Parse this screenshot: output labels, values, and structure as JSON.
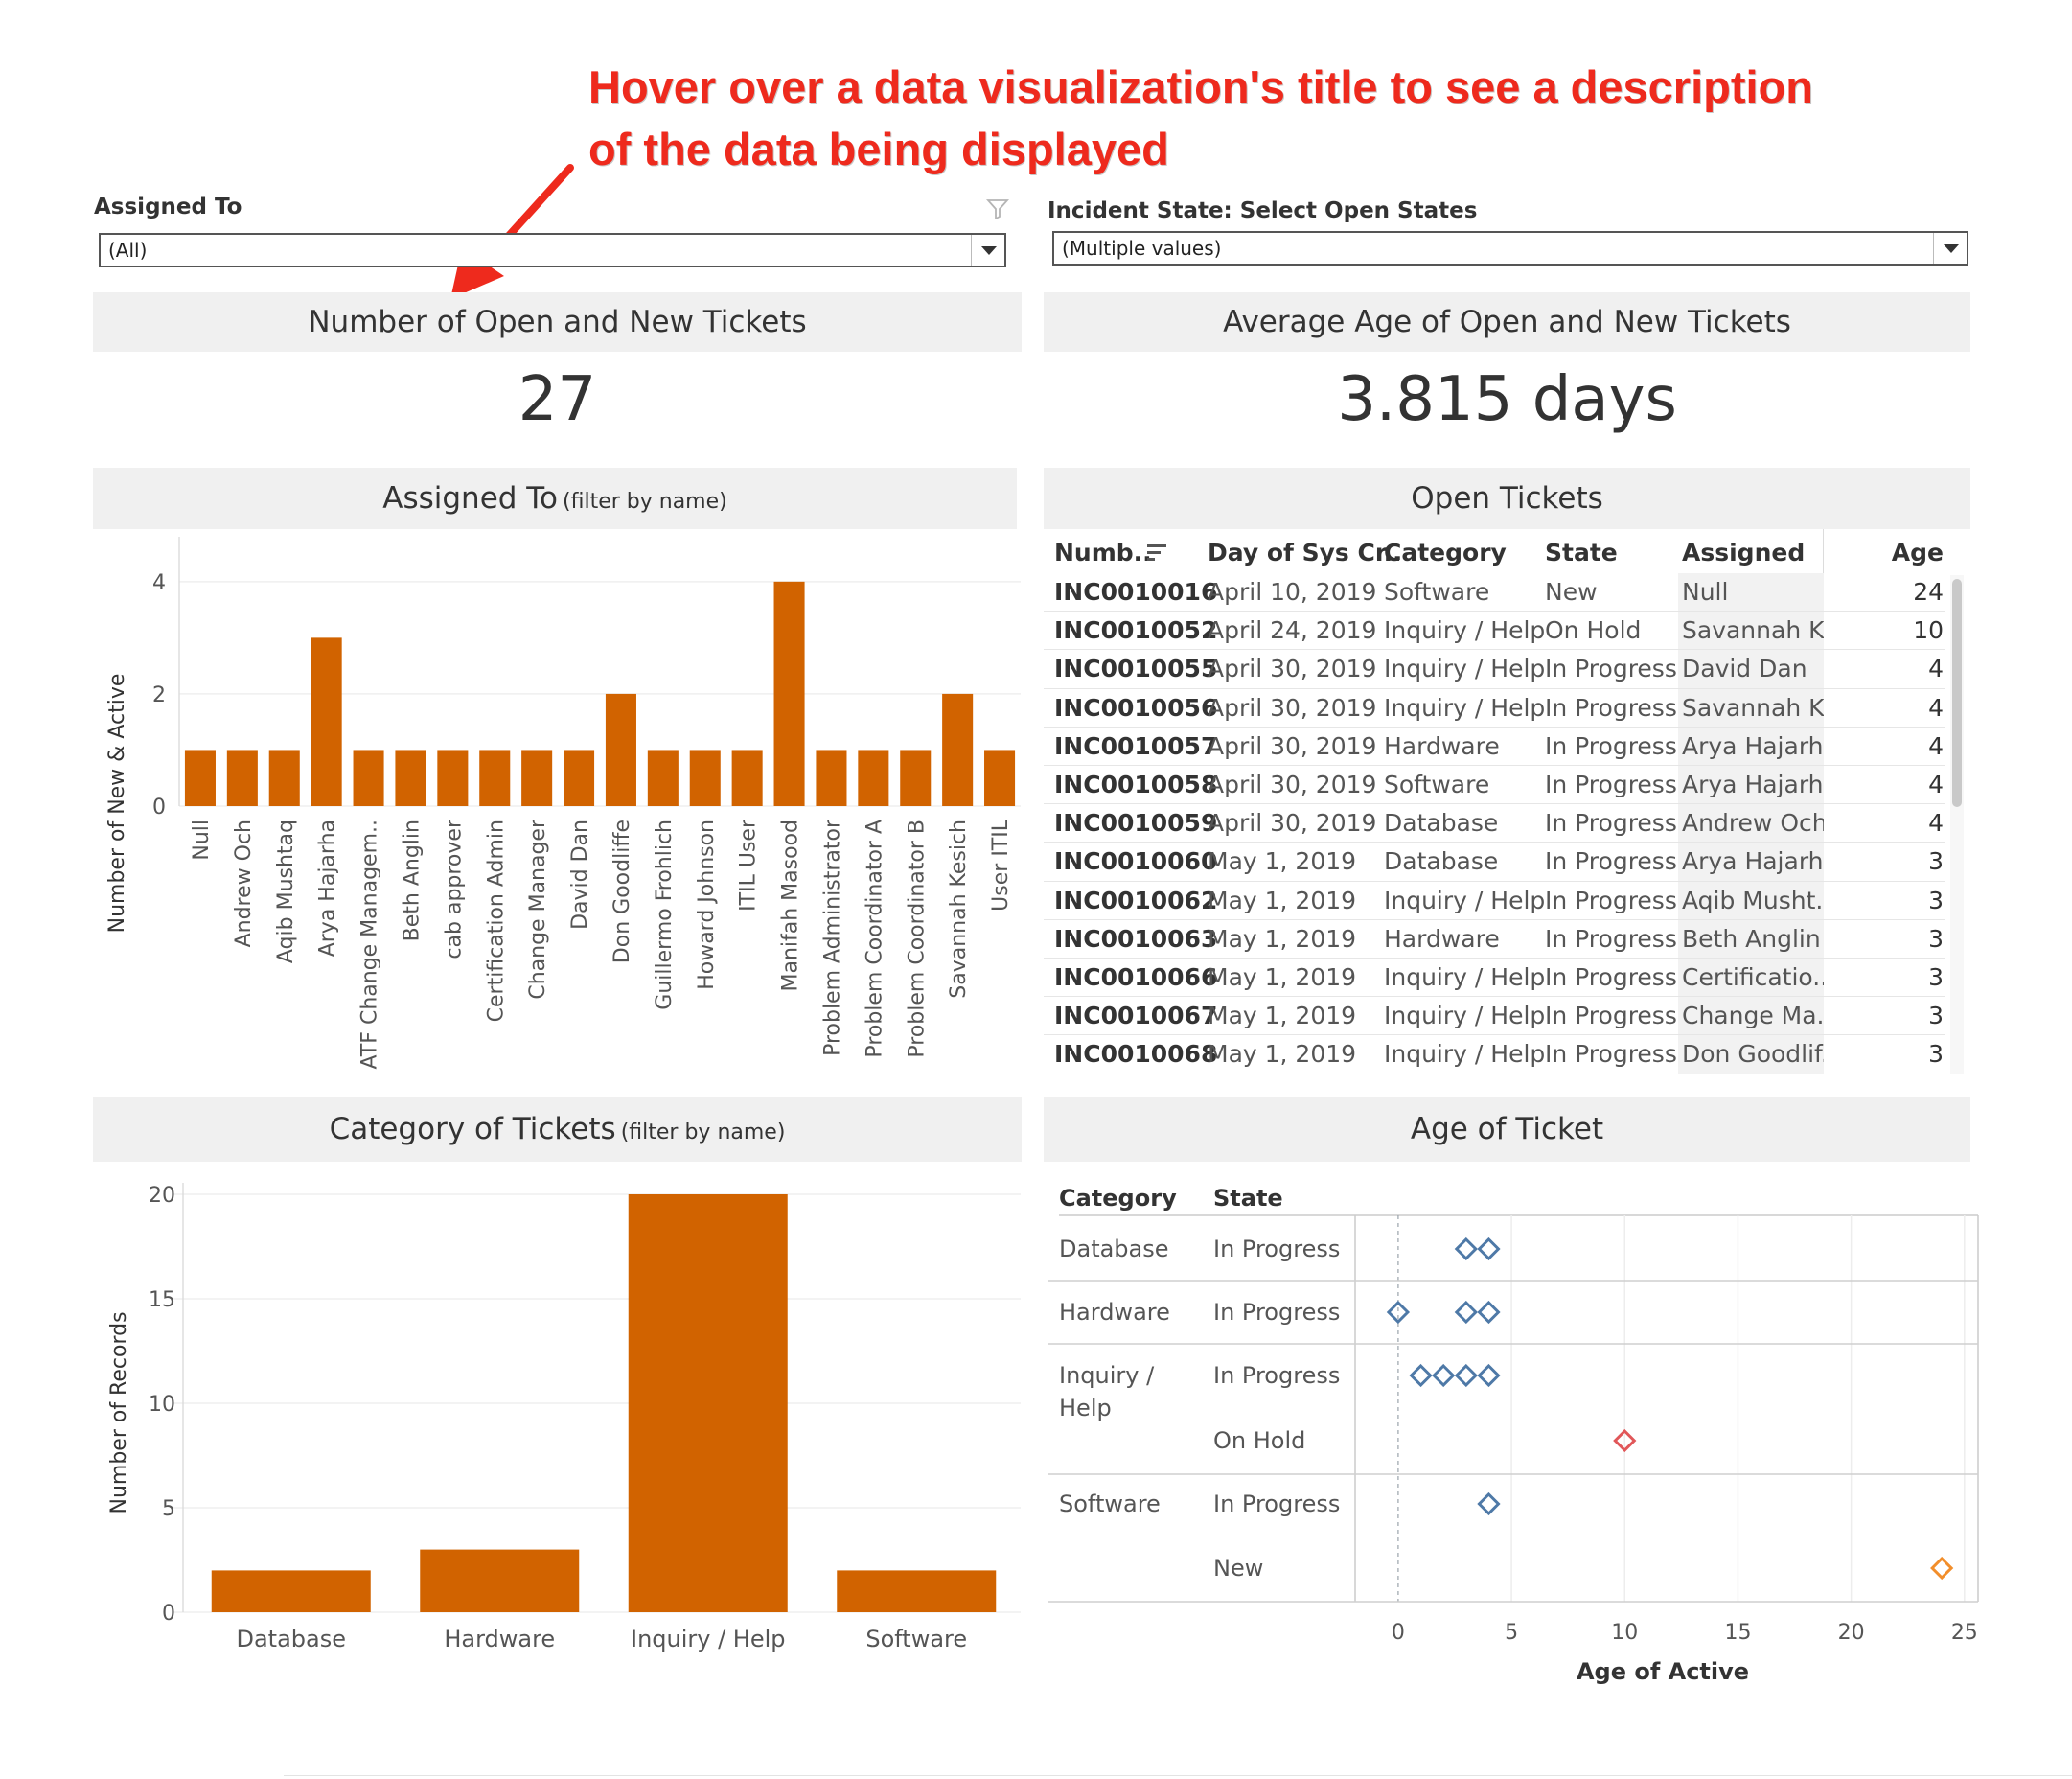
{
  "annotation": {
    "line1": "Hover over a data visualization's title to see a description",
    "line2": "of the data being displayed"
  },
  "filters": {
    "assigned_to": {
      "label": "Assigned To",
      "value": "(All)",
      "icon": "funnel-icon"
    },
    "incident_state": {
      "label": "Incident State: Select Open States",
      "value": "(Multiple values)"
    }
  },
  "kpis": {
    "open_tickets": {
      "title": "Number of Open and New Tickets",
      "value": "27"
    },
    "avg_age": {
      "title": "Average Age of Open and New Tickets",
      "value": "3.815 days"
    }
  },
  "assigned_chart": {
    "title": "Assigned To",
    "subtitle": "(filter by name)",
    "ylabel": "Number of New & Active",
    "color": "#d16300"
  },
  "category_chart": {
    "title": "Category of Tickets",
    "subtitle": "(filter by name)",
    "ylabel": "Number of Records",
    "color": "#d16300"
  },
  "open_tickets_table": {
    "title": "Open Tickets",
    "columns": [
      "Numb..",
      "Day of Sys Cr..",
      "Category",
      "State",
      "Assigned",
      "Age"
    ],
    "sort_icon": "sort-icon",
    "rows": [
      [
        "INC0010016",
        "April 10, 2019",
        "Software",
        "New",
        "Null",
        "24"
      ],
      [
        "INC0010052",
        "April 24, 2019",
        "Inquiry / Help",
        "On Hold",
        "Savannah K..",
        "10"
      ],
      [
        "INC0010055",
        "April 30, 2019",
        "Inquiry / Help",
        "In Progress",
        "David Dan",
        "4"
      ],
      [
        "INC0010056",
        "April 30, 2019",
        "Inquiry / Help",
        "In Progress",
        "Savannah K..",
        "4"
      ],
      [
        "INC0010057",
        "April 30, 2019",
        "Hardware",
        "In Progress",
        "Arya Hajarha",
        "4"
      ],
      [
        "INC0010058",
        "April 30, 2019",
        "Software",
        "In Progress",
        "Arya Hajarha",
        "4"
      ],
      [
        "INC0010059",
        "April 30, 2019",
        "Database",
        "In Progress",
        "Andrew Och",
        "4"
      ],
      [
        "INC0010060",
        "May 1, 2019",
        "Database",
        "In Progress",
        "Arya Hajarha",
        "3"
      ],
      [
        "INC0010062",
        "May 1, 2019",
        "Inquiry / Help",
        "In Progress",
        "Aqib Musht..",
        "3"
      ],
      [
        "INC0010063",
        "May 1, 2019",
        "Hardware",
        "In Progress",
        "Beth Anglin",
        "3"
      ],
      [
        "INC0010066",
        "May 1, 2019",
        "Inquiry / Help",
        "In Progress",
        "Certificatio..",
        "3"
      ],
      [
        "INC0010067",
        "May 1, 2019",
        "Inquiry / Help",
        "In Progress",
        "Change Ma..",
        "3"
      ],
      [
        "INC0010068",
        "May 1, 2019",
        "Inquiry / Help",
        "In Progress",
        "Don Goodlif..",
        "3"
      ]
    ]
  },
  "age_chart": {
    "title": "Age of Ticket",
    "col_category": "Category",
    "col_state": "State",
    "xlabel": "Age of Active",
    "colors": {
      "In Progress": "#4e79a7",
      "On Hold": "#e15759",
      "New": "#f28e2b"
    }
  },
  "chart_data": [
    {
      "type": "bar",
      "title": "Assigned To",
      "ylabel": "Number of New & Active",
      "categories": [
        "Null",
        "Andrew Och",
        "Aqib Mushtaq",
        "Arya Hajarha",
        "ATF Change Managem..",
        "Beth Anglin",
        "cab approver",
        "Certification Admin",
        "Change Manager",
        "David Dan",
        "Don Goodliffe",
        "Guillermo Frohlich",
        "Howard Johnson",
        "ITIL User",
        "Manifah Masood",
        "Problem Administrator",
        "Problem Coordinator A",
        "Problem Coordinator B",
        "Savannah Kesich",
        "User ITIL"
      ],
      "values": [
        1,
        1,
        1,
        3,
        1,
        1,
        1,
        1,
        1,
        1,
        2,
        1,
        1,
        1,
        4,
        1,
        1,
        1,
        2,
        1
      ],
      "yticks": [
        0,
        2,
        4
      ],
      "ylim": [
        0,
        4.8
      ]
    },
    {
      "type": "bar",
      "title": "Category of Tickets",
      "ylabel": "Number of Records",
      "categories": [
        "Database",
        "Hardware",
        "Inquiry / Help",
        "Software"
      ],
      "values": [
        2,
        3,
        20,
        2
      ],
      "yticks": [
        0,
        5,
        10,
        15,
        20
      ],
      "ylim": [
        0,
        20.5
      ]
    },
    {
      "type": "scatter",
      "title": "Age of Ticket",
      "xlabel": "Age of Active",
      "xticks": [
        0,
        5,
        10,
        15,
        20,
        25
      ],
      "xlim": [
        -1.9,
        25.6
      ],
      "rows": [
        {
          "category": "Database",
          "state": "In Progress",
          "x": [
            3,
            4
          ]
        },
        {
          "category": "Hardware",
          "state": "In Progress",
          "x": [
            0,
            3,
            4
          ]
        },
        {
          "category": "Inquiry / Help",
          "state": "In Progress",
          "x": [
            1,
            2,
            3,
            4
          ]
        },
        {
          "category": "",
          "state": "On Hold",
          "x": [
            10
          ]
        },
        {
          "category": "Software",
          "state": "In Progress",
          "x": [
            4
          ]
        },
        {
          "category": "",
          "state": "New",
          "x": [
            24
          ]
        }
      ]
    }
  ]
}
